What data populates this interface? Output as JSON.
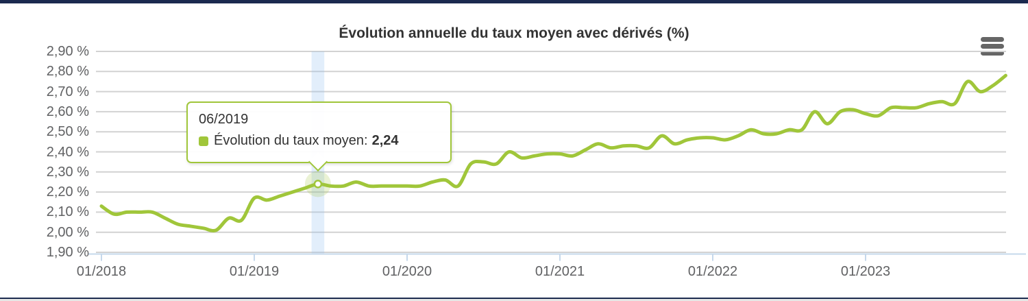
{
  "page": {
    "colors": {
      "navy": "#1b2a4f",
      "bottom_strip": "#e6e6e6"
    }
  },
  "chart": {
    "title": "Évolution annuelle du taux moyen avec dérivés (%)",
    "menu_icon": "hamburger-icon",
    "colors": {
      "series_green": "#a0c63a",
      "grid": "#d2d2d2",
      "axis_blue": "#c5d8eb",
      "label_gray": "#606163",
      "text_dark": "#333333",
      "band_blue": "rgba(150,195,240,0.28)",
      "halo_green": "rgba(160,198,58,0.22)",
      "menu_gray": "#666666"
    },
    "y_axis": {
      "tick_labels": [
        "2,90 %",
        "2,80 %",
        "2,70 %",
        "2,60 %",
        "2,50 %",
        "2,40 %",
        "2,30 %",
        "2,20 %",
        "2,10 %",
        "2,00 %",
        "1,90 %"
      ],
      "tick_values": [
        2.9,
        2.8,
        2.7,
        2.6,
        2.5,
        2.4,
        2.3,
        2.2,
        2.1,
        2.0,
        1.9
      ]
    },
    "x_axis": {
      "ticks": [
        {
          "label": "01/2018",
          "month_index": 0
        },
        {
          "label": "01/2019",
          "month_index": 12
        },
        {
          "label": "01/2020",
          "month_index": 24
        },
        {
          "label": "01/2021",
          "month_index": 36
        },
        {
          "label": "01/2022",
          "month_index": 48
        },
        {
          "label": "01/2023",
          "month_index": 60
        }
      ]
    },
    "tooltip": {
      "header": "06/2019",
      "series_label": "Évolution du taux moyen:",
      "value": "2,24"
    },
    "chart_data": {
      "type": "line",
      "title": "Évolution annuelle du taux moyen avec dérivés (%)",
      "xlabel": "",
      "ylabel": "",
      "ylim": [
        1.9,
        2.9
      ],
      "y_tick_step": 0.1,
      "grid": true,
      "legend_position": "none",
      "x": [
        "01/2018",
        "02/2018",
        "03/2018",
        "04/2018",
        "05/2018",
        "06/2018",
        "07/2018",
        "08/2018",
        "09/2018",
        "10/2018",
        "11/2018",
        "12/2018",
        "01/2019",
        "02/2019",
        "03/2019",
        "04/2019",
        "05/2019",
        "06/2019",
        "07/2019",
        "08/2019",
        "09/2019",
        "10/2019",
        "11/2019",
        "12/2019",
        "01/2020",
        "02/2020",
        "03/2020",
        "04/2020",
        "05/2020",
        "06/2020",
        "07/2020",
        "08/2020",
        "09/2020",
        "10/2020",
        "11/2020",
        "12/2020",
        "01/2021",
        "02/2021",
        "03/2021",
        "04/2021",
        "05/2021",
        "06/2021",
        "07/2021",
        "08/2021",
        "09/2021",
        "10/2021",
        "11/2021",
        "12/2021",
        "01/2022",
        "02/2022",
        "03/2022",
        "04/2022",
        "05/2022",
        "06/2022",
        "07/2022",
        "08/2022",
        "09/2022",
        "10/2022",
        "11/2022",
        "12/2022",
        "01/2023",
        "02/2023",
        "03/2023",
        "04/2023",
        "05/2023",
        "06/2023",
        "07/2023",
        "08/2023",
        "09/2023",
        "10/2023",
        "11/2023",
        "12/2023"
      ],
      "series": [
        {
          "name": "Évolution du taux moyen",
          "color": "#a0c63a",
          "values": [
            2.13,
            2.09,
            2.1,
            2.1,
            2.1,
            2.07,
            2.04,
            2.03,
            2.02,
            2.01,
            2.07,
            2.06,
            2.17,
            2.16,
            2.18,
            2.2,
            2.22,
            2.24,
            2.23,
            2.23,
            2.25,
            2.23,
            2.23,
            2.23,
            2.23,
            2.23,
            2.25,
            2.26,
            2.23,
            2.34,
            2.35,
            2.34,
            2.4,
            2.37,
            2.38,
            2.39,
            2.39,
            2.38,
            2.41,
            2.44,
            2.42,
            2.43,
            2.43,
            2.42,
            2.48,
            2.44,
            2.46,
            2.47,
            2.47,
            2.46,
            2.48,
            2.51,
            2.49,
            2.49,
            2.51,
            2.51,
            2.6,
            2.54,
            2.6,
            2.61,
            2.59,
            2.58,
            2.62,
            2.62,
            2.62,
            2.64,
            2.65,
            2.64,
            2.75,
            2.7,
            2.73,
            2.78
          ]
        }
      ],
      "highlight": {
        "month": "06/2019",
        "index": 17,
        "value": 2.24
      }
    }
  }
}
